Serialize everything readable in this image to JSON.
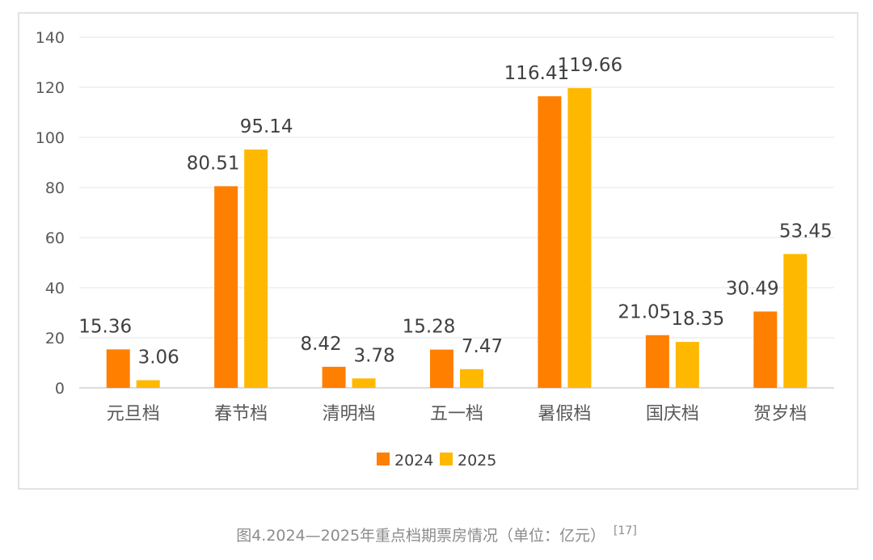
{
  "chart_data": {
    "type": "bar",
    "categories": [
      "元旦档",
      "春节档",
      "清明档",
      "五一档",
      "暑假档",
      "国庆档",
      "贺岁档"
    ],
    "series": [
      {
        "name": "2024",
        "values": [
          15.36,
          80.51,
          8.42,
          15.28,
          116.41,
          21.05,
          30.49
        ],
        "color": "#FF7F00"
      },
      {
        "name": "2025",
        "values": [
          3.06,
          95.14,
          3.78,
          7.47,
          119.66,
          18.35,
          53.45
        ],
        "color": "#FFB800"
      }
    ],
    "value_labels": [
      [
        "15.36",
        "80.51",
        "8.42",
        "15.28",
        "116.41",
        "21.05",
        "30.49"
      ],
      [
        "3.06",
        "95.14",
        "3.78",
        "7.47",
        "119.66",
        "18.35",
        "53.45"
      ]
    ],
    "ylim": [
      0,
      140
    ],
    "yticks": [
      0,
      20,
      40,
      60,
      80,
      100,
      120,
      140
    ],
    "ytick_labels": [
      "0",
      "20",
      "40",
      "60",
      "80",
      "100",
      "120",
      "140"
    ],
    "grid": true,
    "legend_position": "bottom",
    "title": "",
    "xlabel": "",
    "ylabel": ""
  },
  "caption": {
    "text": "图4.2024—2025年重点档期票房情况（单位：亿元）",
    "ref": "[17]"
  }
}
